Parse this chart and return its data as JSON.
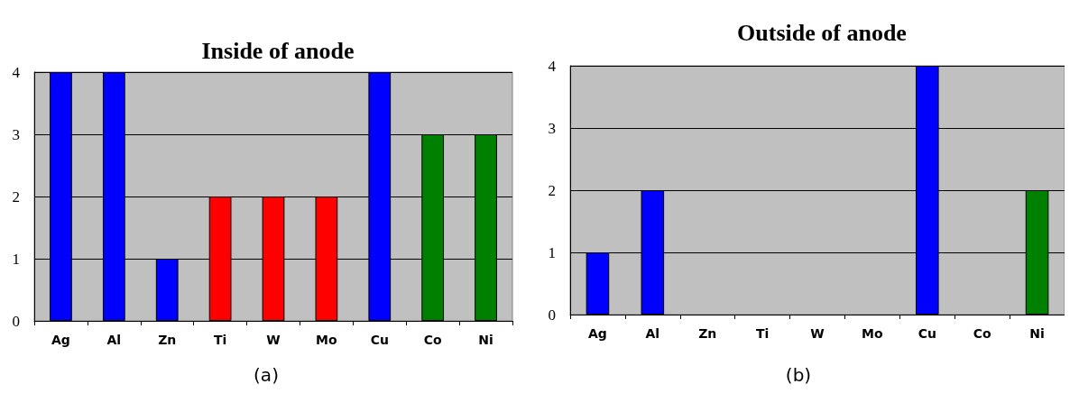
{
  "chart_data": [
    {
      "type": "bar",
      "title": "Inside of anode",
      "categories": [
        "Ag",
        "Al",
        "Zn",
        "Ti",
        "W",
        "Mo",
        "Cu",
        "Co",
        "Ni"
      ],
      "values": [
        4,
        4,
        1,
        2,
        2,
        2,
        4,
        3,
        3
      ],
      "colors": [
        "#0000ff",
        "#0000ff",
        "#0000ff",
        "#ff0000",
        "#ff0000",
        "#ff0000",
        "#0000ff",
        "#008000",
        "#008000"
      ],
      "ylim": [
        0,
        4
      ],
      "yticks": [
        0,
        1,
        2,
        3,
        4
      ],
      "grid": "y",
      "annotations": [
        "(a)"
      ]
    },
    {
      "type": "bar",
      "title": "Outside of anode",
      "categories": [
        "Ag",
        "Al",
        "Zn",
        "Ti",
        "W",
        "Mo",
        "Cu",
        "Co",
        "Ni"
      ],
      "values": [
        1,
        2,
        0,
        0,
        0,
        0,
        4,
        0,
        2
      ],
      "colors": [
        "#0000ff",
        "#0000ff",
        null,
        null,
        null,
        null,
        "#0000ff",
        null,
        "#008000"
      ],
      "ylim": [
        0,
        4
      ],
      "yticks": [
        0,
        1,
        2,
        3,
        4
      ],
      "grid": "y",
      "annotations": [
        "(b)"
      ]
    }
  ]
}
